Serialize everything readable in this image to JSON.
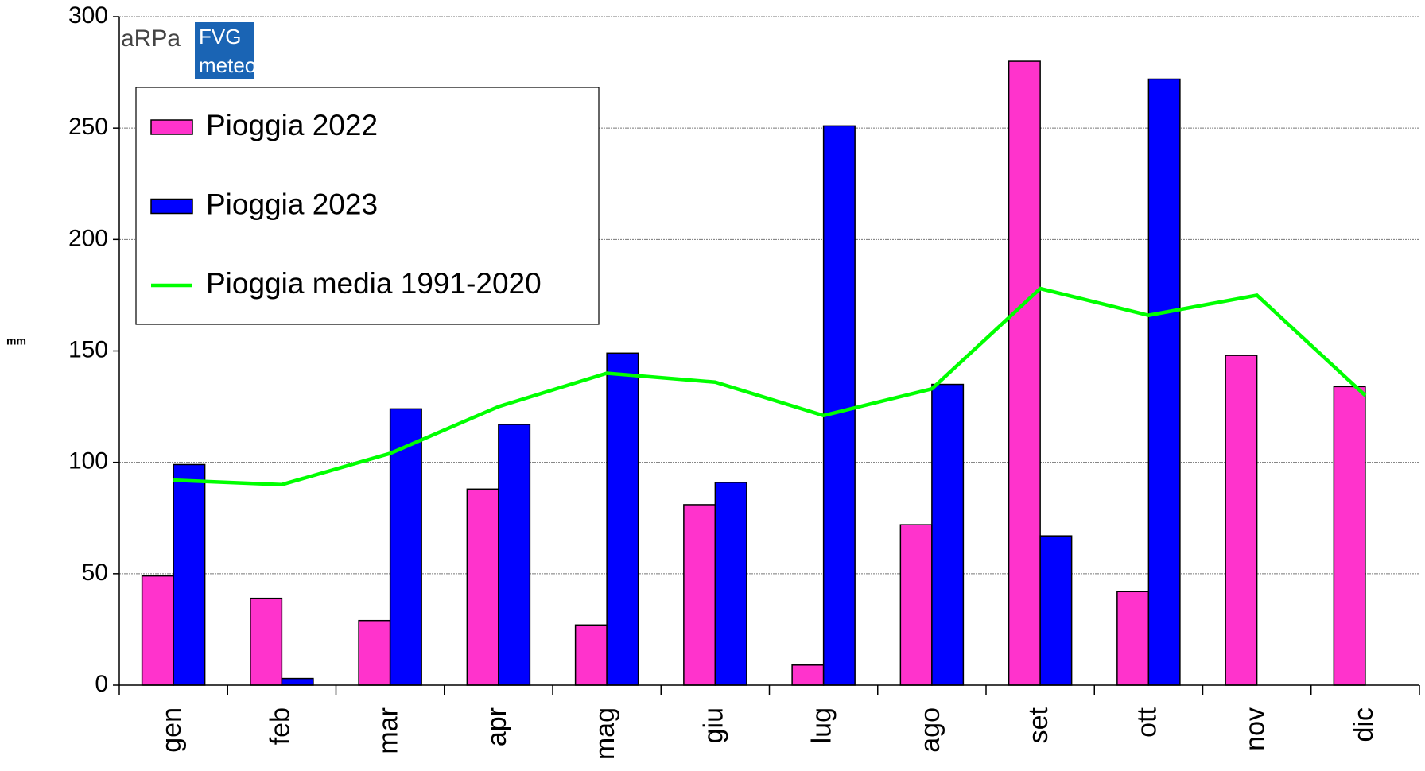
{
  "chart_data": {
    "type": "bar",
    "logo": {
      "left": "aRPa",
      "box_top": "FVG",
      "box_bottom": "meteo"
    },
    "y_label": "mm",
    "categories": [
      "gen",
      "feb",
      "mar",
      "apr",
      "mag",
      "giu",
      "lug",
      "ago",
      "set",
      "ott",
      "nov",
      "dic"
    ],
    "series": [
      {
        "name": "Pioggia 2022",
        "type": "bar",
        "color": "#ff33cc",
        "values": [
          49,
          39,
          29,
          88,
          27,
          81,
          9,
          72,
          280,
          42,
          148,
          134
        ]
      },
      {
        "name": "Pioggia 2023",
        "type": "bar",
        "color": "#0000ff",
        "values": [
          99,
          3,
          124,
          117,
          149,
          91,
          251,
          135,
          67,
          272,
          null,
          null
        ]
      },
      {
        "name": "Pioggia media 1991-2020",
        "type": "line",
        "color": "#00ff00",
        "values": [
          92,
          90,
          104,
          125,
          140,
          136,
          121,
          133,
          178,
          166,
          175,
          130
        ]
      }
    ],
    "ylim": [
      0,
      300
    ],
    "yticks": [
      0,
      50,
      100,
      150,
      200,
      250,
      300
    ],
    "grid": true,
    "legend": "upper left"
  }
}
